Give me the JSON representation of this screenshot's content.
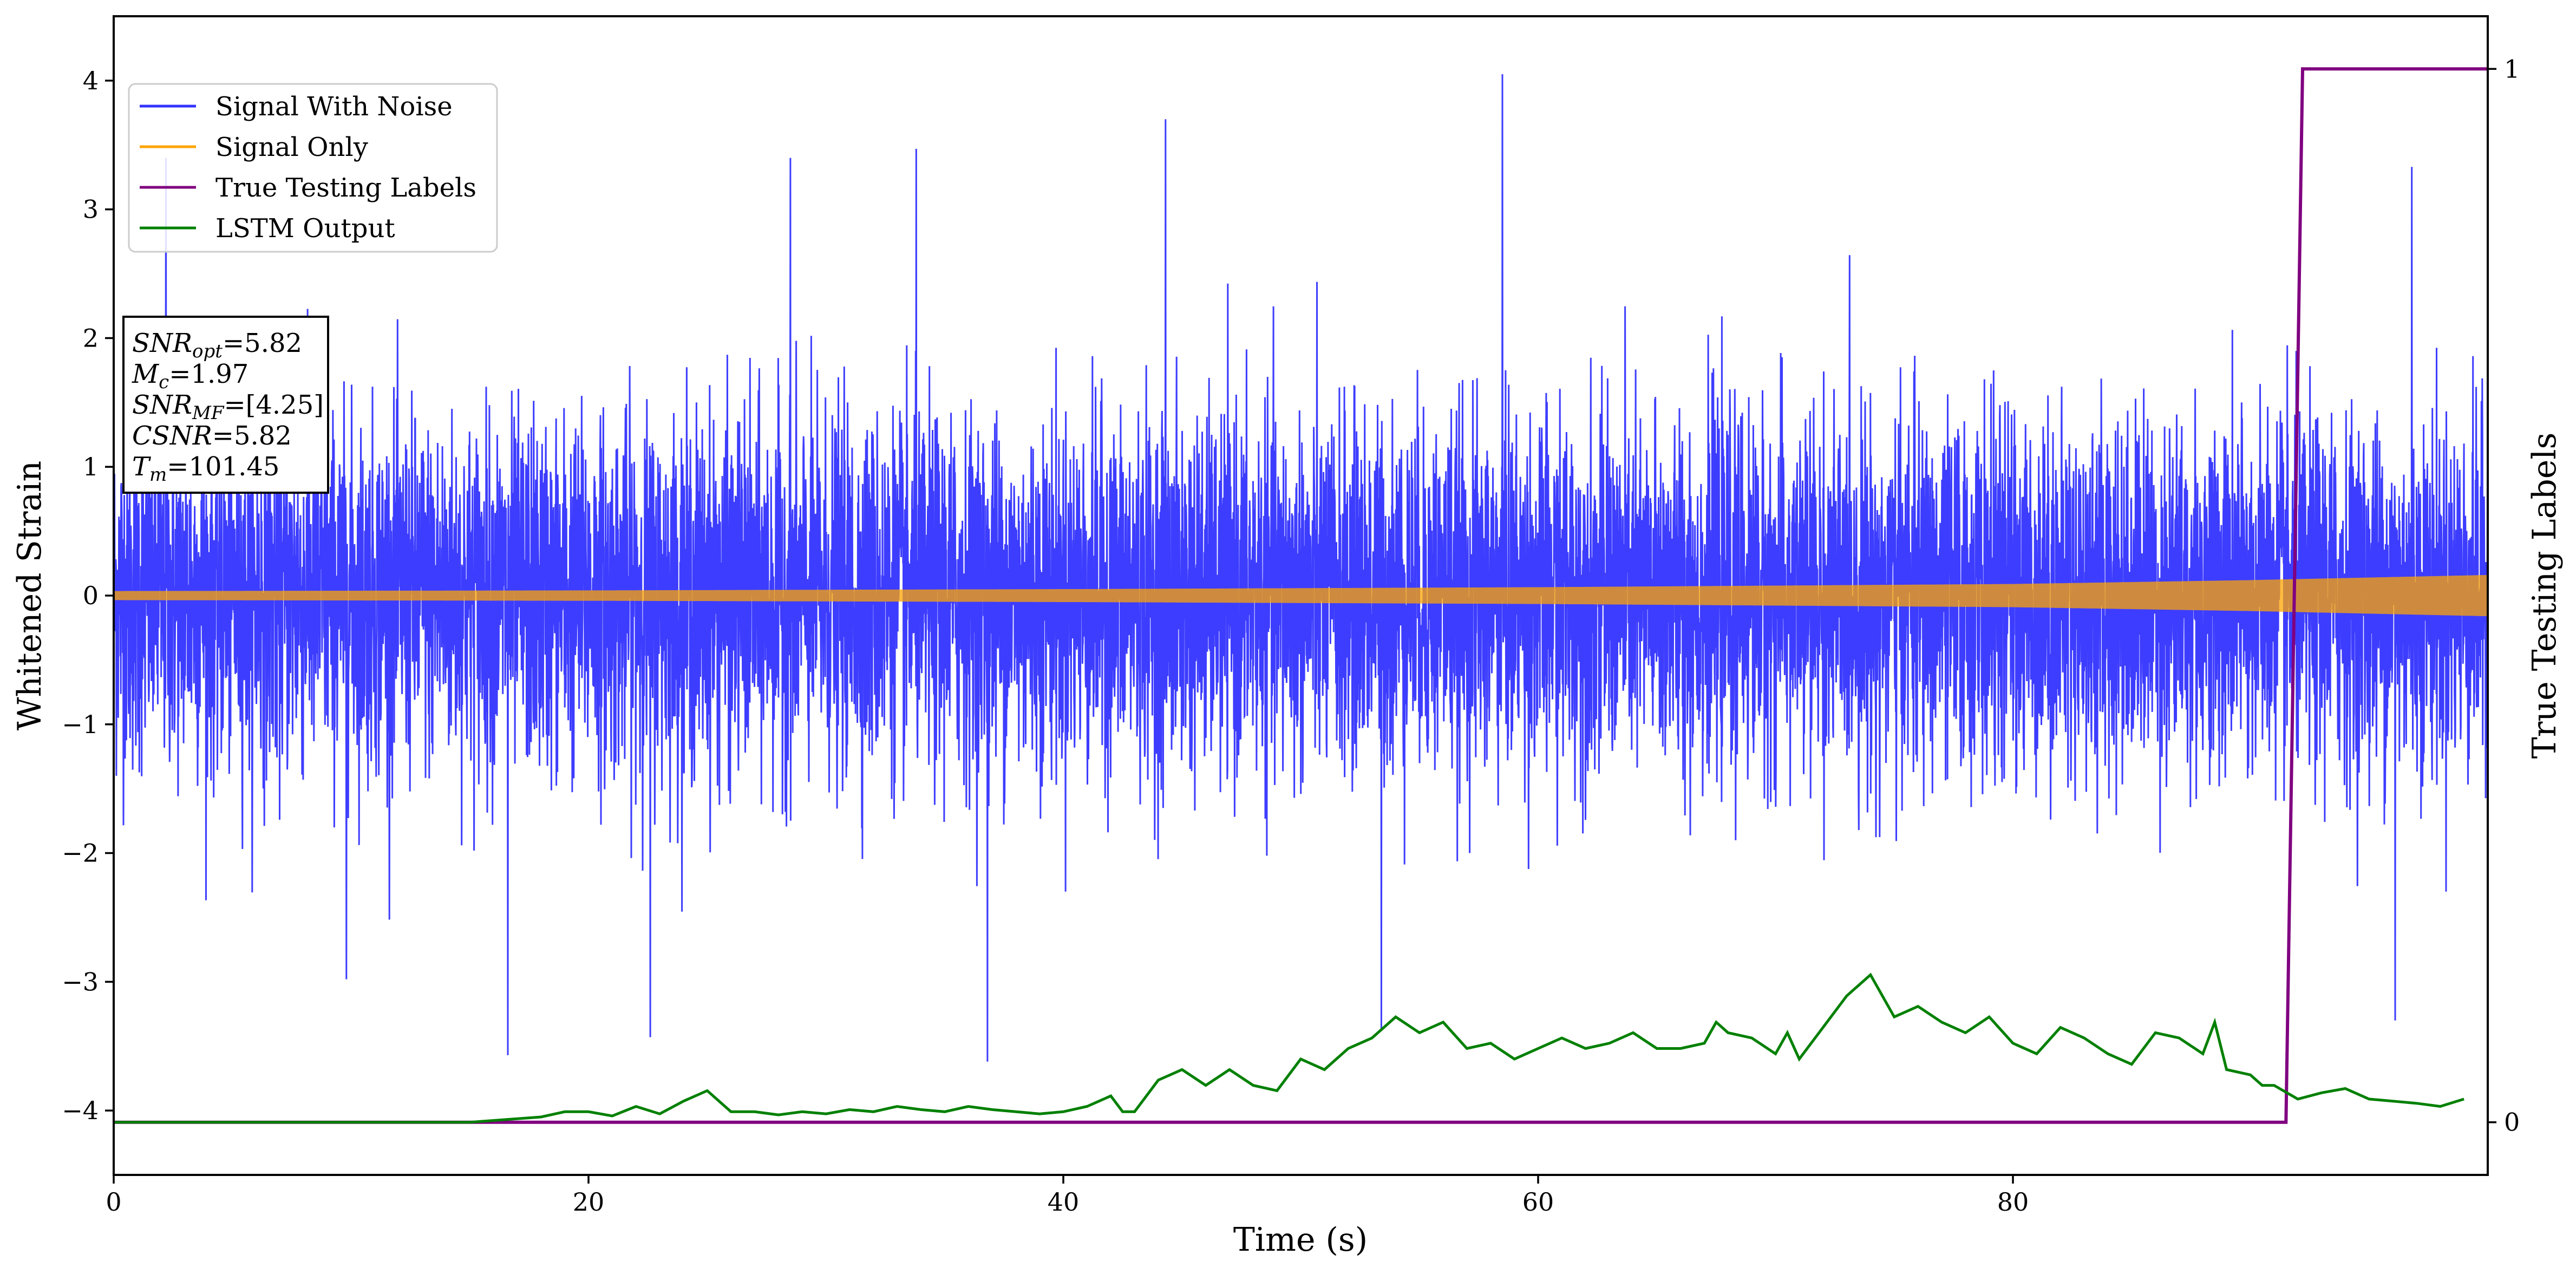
{
  "chart_data": {
    "type": "line",
    "xlabel": "Time (s)",
    "ylabel": "Whitened Strain",
    "y2label": "True Testing Labels",
    "xlim": [
      0,
      100
    ],
    "ylim": [
      -4.5,
      4.5
    ],
    "y2lim": [
      -0.05,
      1.05
    ],
    "xticks": [
      0,
      20,
      40,
      60,
      80
    ],
    "yticks": [
      -4,
      -3,
      -2,
      -1,
      0,
      1,
      2,
      3,
      4
    ],
    "ytick_labels": [
      "−4",
      "−3",
      "−2",
      "−1",
      "0",
      "1",
      "2",
      "3",
      "4"
    ],
    "y2ticks": [
      0,
      1
    ],
    "grid": false,
    "legend_position": "top-left",
    "series": [
      {
        "name": "Signal With Noise",
        "color": "#3333ff",
        "axis": "left",
        "description_stats": {
          "typical_min": -2.2,
          "typical_max": 2.4,
          "peak_max": 4.05,
          "peak_min": -3.62
        },
        "notable_peaks": [
          {
            "x": 16.6,
            "y": -3.57
          },
          {
            "x": 22.6,
            "y": -3.43
          },
          {
            "x": 36.8,
            "y": -3.62
          },
          {
            "x": 53.4,
            "y": -3.37
          },
          {
            "x": 58.5,
            "y": 4.05
          },
          {
            "x": 44.3,
            "y": 3.7
          },
          {
            "x": 33.8,
            "y": 3.47
          },
          {
            "x": 9.8,
            "y": -2.98
          },
          {
            "x": 96.8,
            "y": 3.33
          },
          {
            "x": 96.1,
            "y": -3.3
          },
          {
            "x": 2.2,
            "y": 3.4
          },
          {
            "x": 28.5,
            "y": 3.4
          }
        ]
      },
      {
        "name": "Signal Only",
        "color": "#ffa500",
        "axis": "left",
        "envelope": [
          {
            "x": 0,
            "amp": 0.035
          },
          {
            "x": 20,
            "amp": 0.04
          },
          {
            "x": 40,
            "amp": 0.05
          },
          {
            "x": 60,
            "amp": 0.065
          },
          {
            "x": 80,
            "amp": 0.09
          },
          {
            "x": 90,
            "amp": 0.12
          },
          {
            "x": 100,
            "amp": 0.16
          }
        ]
      },
      {
        "name": "True Testing Labels",
        "color": "#800080",
        "axis": "right",
        "x": [
          0,
          91.5,
          92.2,
          100
        ],
        "values": [
          0,
          0,
          1,
          1
        ]
      },
      {
        "name": "LSTM Output",
        "color": "#008000",
        "axis": "right",
        "x": [
          0,
          15,
          18,
          19,
          20,
          21,
          22,
          23,
          24,
          25,
          26,
          27,
          28,
          29,
          30,
          31,
          32,
          33,
          34,
          35,
          36,
          37,
          38,
          39,
          40,
          41,
          42,
          42.5,
          43,
          44,
          45,
          46,
          47,
          48,
          49,
          50,
          51,
          52,
          53,
          54,
          55,
          56,
          57,
          58,
          59,
          60,
          61,
          62,
          63,
          64,
          65,
          66,
          67,
          67.5,
          68,
          69,
          70,
          70.5,
          71,
          72,
          73,
          74,
          75,
          76,
          77,
          78,
          79,
          80,
          81,
          82,
          83,
          84,
          85,
          86,
          87,
          88,
          88.5,
          89,
          90,
          90.5,
          91,
          92,
          93,
          94,
          95,
          96,
          97,
          98,
          99
        ],
        "values": [
          0,
          0,
          0.005,
          0.01,
          0.01,
          0.006,
          0.015,
          0.008,
          0.02,
          0.03,
          0.01,
          0.01,
          0.007,
          0.01,
          0.008,
          0.012,
          0.01,
          0.015,
          0.012,
          0.01,
          0.015,
          0.012,
          0.01,
          0.008,
          0.01,
          0.015,
          0.025,
          0.01,
          0.01,
          0.04,
          0.05,
          0.035,
          0.05,
          0.035,
          0.03,
          0.06,
          0.05,
          0.07,
          0.08,
          0.1,
          0.085,
          0.095,
          0.07,
          0.075,
          0.06,
          0.07,
          0.08,
          0.07,
          0.075,
          0.085,
          0.07,
          0.07,
          0.075,
          0.095,
          0.085,
          0.08,
          0.065,
          0.085,
          0.06,
          0.09,
          0.12,
          0.14,
          0.1,
          0.11,
          0.095,
          0.085,
          0.1,
          0.075,
          0.065,
          0.09,
          0.08,
          0.065,
          0.055,
          0.085,
          0.08,
          0.065,
          0.095,
          0.05,
          0.045,
          0.035,
          0.035,
          0.022,
          0.028,
          0.032,
          0.022,
          0.02,
          0.018,
          0.015,
          0.022
        ]
      }
    ],
    "info_box": [
      {
        "main": "SNR",
        "sub": "opt",
        "rest": "=5.82"
      },
      {
        "main": "M",
        "sub": "c",
        "rest": "=1.97"
      },
      {
        "main": "SNR",
        "sub": "MF",
        "rest": "=[4.25]"
      },
      {
        "main": "CSNR",
        "sub": "",
        "rest": "=5.82"
      },
      {
        "main": "T",
        "sub": "m",
        "rest": "=101.45"
      }
    ]
  }
}
